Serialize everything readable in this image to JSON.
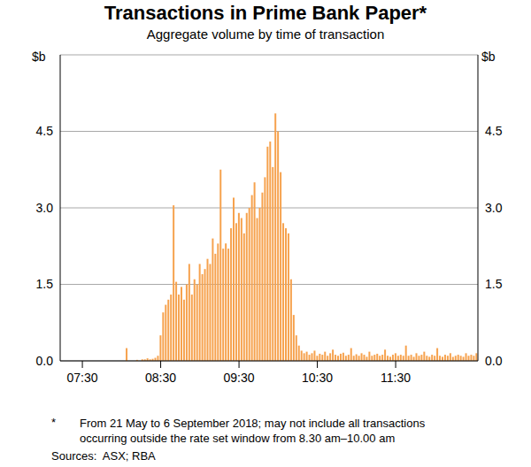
{
  "chart_data": {
    "type": "bar",
    "title": "Transactions in Prime Bank Paper*",
    "subtitle": "Aggregate volume by time of transaction",
    "y_label": "$b",
    "footnote": {
      "mark": "*",
      "text": "From 21 May to 6 September 2018; may not include all transactions occurring outside the rate set window from 8.30 am–10.00 am"
    },
    "source": "Sources:  ASX; RBA",
    "color": "#f6a24e",
    "grid": true,
    "ylim": [
      0,
      6
    ],
    "yticks": [
      {
        "value": 0,
        "label": "0.0"
      },
      {
        "value": 1.5,
        "label": "1.5"
      },
      {
        "value": 3,
        "label": "3.0"
      },
      {
        "value": 4.5,
        "label": "4.5"
      }
    ],
    "categories": [
      null,
      null,
      null,
      null,
      null,
      null,
      null,
      null,
      "07:30",
      null,
      null,
      null,
      null,
      null,
      null,
      null,
      null,
      null,
      null,
      null,
      null,
      null,
      null,
      null,
      null,
      null,
      null,
      null,
      null,
      null,
      null,
      null,
      null,
      null,
      null,
      null,
      null,
      null,
      "08:30",
      null,
      null,
      null,
      null,
      null,
      null,
      null,
      null,
      null,
      null,
      null,
      null,
      null,
      null,
      null,
      null,
      null,
      null,
      null,
      null,
      null,
      null,
      null,
      null,
      null,
      null,
      null,
      null,
      null,
      "09:30",
      null,
      null,
      null,
      null,
      null,
      null,
      null,
      null,
      null,
      null,
      null,
      null,
      null,
      null,
      null,
      null,
      null,
      null,
      null,
      null,
      null,
      null,
      null,
      null,
      null,
      null,
      null,
      null,
      null,
      "10:30",
      null,
      null,
      null,
      null,
      null,
      null,
      null,
      null,
      null,
      null,
      null,
      null,
      null,
      null,
      null,
      null,
      null,
      null,
      null,
      null,
      null,
      null,
      null,
      null,
      null,
      null,
      null,
      null,
      null,
      "11:30",
      null,
      null,
      null,
      null,
      null,
      null,
      null,
      null,
      null,
      null,
      null,
      null,
      null,
      null,
      null,
      null,
      null,
      null,
      null,
      null,
      null,
      null,
      null,
      null,
      null,
      null,
      null,
      null,
      null,
      null,
      null
    ],
    "values": [
      0,
      0,
      0,
      0,
      0,
      0,
      0,
      0,
      0,
      0,
      0,
      0,
      0,
      0,
      0,
      0,
      0,
      0,
      0,
      0,
      0,
      0,
      0,
      0,
      0,
      0.25,
      0,
      0,
      0,
      0.02,
      0,
      0.03,
      0.03,
      0.05,
      0.03,
      0.04,
      0.06,
      0.1,
      0.5,
      0.95,
      1.1,
      1.2,
      1.3,
      3.05,
      1.55,
      1.3,
      1.45,
      1.2,
      1.5,
      1.9,
      1.3,
      1.6,
      1.5,
      1.9,
      1.7,
      1.8,
      2.0,
      1.9,
      2.4,
      2.1,
      2.3,
      3.75,
      2.2,
      2.3,
      2.2,
      2.6,
      3.2,
      2.7,
      2.9,
      2.8,
      2.5,
      2.9,
      3.0,
      3.25,
      3.5,
      2.8,
      3.0,
      3.3,
      3.6,
      4.2,
      4.3,
      3.8,
      4.85,
      4.5,
      3.7,
      2.7,
      2.6,
      2.5,
      1.6,
      0.9,
      0.5,
      0.3,
      0.2,
      0.15,
      0.18,
      0.12,
      0.15,
      0.2,
      0.1,
      0.14,
      0.12,
      0.18,
      0.1,
      0.15,
      0.22,
      0.12,
      0.1,
      0.14,
      0.16,
      0.1,
      0.12,
      0.25,
      0.1,
      0.13,
      0.1,
      0.15,
      0.12,
      0.08,
      0.18,
      0.1,
      0.12,
      0.14,
      0.1,
      0.12,
      0.22,
      0.1,
      0.08,
      0.12,
      0.15,
      0.1,
      0.12,
      0.1,
      0.3,
      0.1,
      0.12,
      0.08,
      0.15,
      0.1,
      0.12,
      0.18,
      0.1,
      0.08,
      0.12,
      0.1,
      0.25,
      0.1,
      0.08,
      0.12,
      0.1,
      0.15,
      0.08,
      0.1,
      0.12,
      0.1,
      0.08,
      0.15,
      0.1,
      0.12,
      0.1,
      0.15
    ]
  }
}
